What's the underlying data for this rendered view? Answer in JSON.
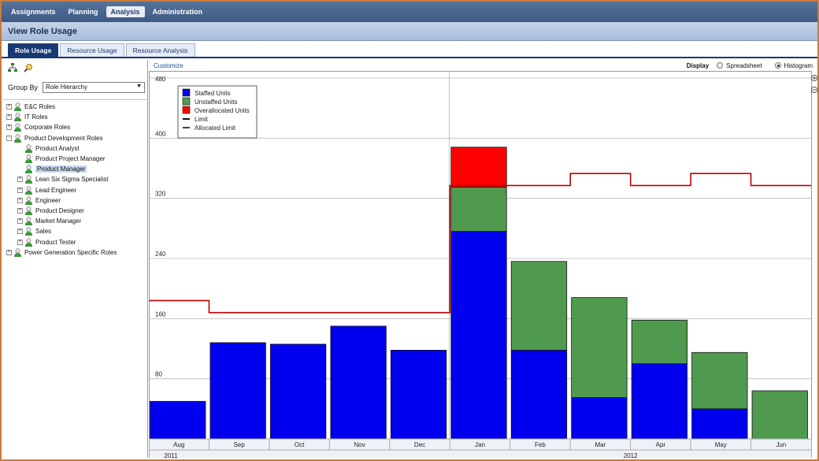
{
  "nav": {
    "items": [
      {
        "label": "Assignments",
        "active": false
      },
      {
        "label": "Planning",
        "active": false
      },
      {
        "label": "Analysis",
        "active": true
      },
      {
        "label": "Administration",
        "active": false
      }
    ]
  },
  "page_title": "View Role Usage",
  "tabs": [
    {
      "label": "Role Usage",
      "active": true
    },
    {
      "label": "Resource Usage",
      "active": false
    },
    {
      "label": "Resource Analysis",
      "active": false
    }
  ],
  "left": {
    "group_by_label": "Group By",
    "group_by_value": "Role Hierarchy",
    "tree": [
      {
        "label": "E&C Roles",
        "level": 0,
        "expander": "+"
      },
      {
        "label": "IT Roles",
        "level": 0,
        "expander": "+"
      },
      {
        "label": "Corporate Roles",
        "level": 0,
        "expander": "+"
      },
      {
        "label": "Product Development Roles",
        "level": 0,
        "expander": "-"
      },
      {
        "label": "Product Analyst",
        "level": 1,
        "expander": ""
      },
      {
        "label": "Product Project Manager",
        "level": 1,
        "expander": ""
      },
      {
        "label": "Product Manager",
        "level": 1,
        "expander": "",
        "selected": true
      },
      {
        "label": "Lean Six Sigma Specialist",
        "level": 1,
        "expander": "+"
      },
      {
        "label": "Lead Engineer",
        "level": 1,
        "expander": "+"
      },
      {
        "label": "Engineer",
        "level": 1,
        "expander": "+"
      },
      {
        "label": "Product Designer",
        "level": 1,
        "expander": "+"
      },
      {
        "label": "Market Manager",
        "level": 1,
        "expander": "+"
      },
      {
        "label": "Sales",
        "level": 1,
        "expander": "+"
      },
      {
        "label": "Product Tester",
        "level": 1,
        "expander": "+"
      },
      {
        "label": "Power Generation Specific Roles",
        "level": 0,
        "expander": "+"
      }
    ]
  },
  "right": {
    "customize_label": "Customize",
    "display_label": "Display",
    "spreadsheet_label": "Spreadsheet",
    "histogram_label": "Histogram",
    "histogram_selected": true
  },
  "colors": {
    "staffed": "#0000ee",
    "unstaffed": "#4f9a4f",
    "overallocated": "#ff0000",
    "limit": "#c00000",
    "nav_bg": "#3d5a84",
    "tab_active": "#183a74"
  },
  "chart_data": {
    "type": "bar",
    "stacked": true,
    "categories": [
      "Aug",
      "Sep",
      "Oct",
      "Nov",
      "Dec",
      "Jan",
      "Feb",
      "Mar",
      "Apr",
      "May",
      "Jun"
    ],
    "years": [
      {
        "label": "2011",
        "categories": [
          "Aug",
          "Sep",
          "Oct",
          "Nov",
          "Dec"
        ]
      },
      {
        "label": "2012",
        "categories": [
          "Jan",
          "Feb",
          "Mar",
          "Apr",
          "May",
          "Jun"
        ]
      }
    ],
    "series": [
      {
        "name": "Staffed Units",
        "values": [
          50,
          128,
          126,
          150,
          118,
          276,
          118,
          55,
          100,
          40,
          0
        ]
      },
      {
        "name": "Unstaffed Units",
        "values": [
          0,
          0,
          0,
          0,
          0,
          59,
          118,
          133,
          58,
          75,
          64
        ]
      },
      {
        "name": "Overallocated Units",
        "values": [
          0,
          0,
          0,
          0,
          0,
          53,
          0,
          0,
          0,
          0,
          0
        ]
      }
    ],
    "limit": {
      "name": "Limit",
      "values": [
        184,
        168,
        168,
        168,
        168,
        337,
        337,
        353,
        337,
        353,
        337
      ]
    },
    "legend": [
      "Staffed Units",
      "Unstaffed Units",
      "Overallocated Units",
      "Limit",
      "Allocated Limit"
    ],
    "legend_position": "top-left",
    "yticks": [
      80,
      160,
      240,
      320,
      400,
      480
    ],
    "ylim": [
      0,
      480
    ],
    "grid": true
  }
}
